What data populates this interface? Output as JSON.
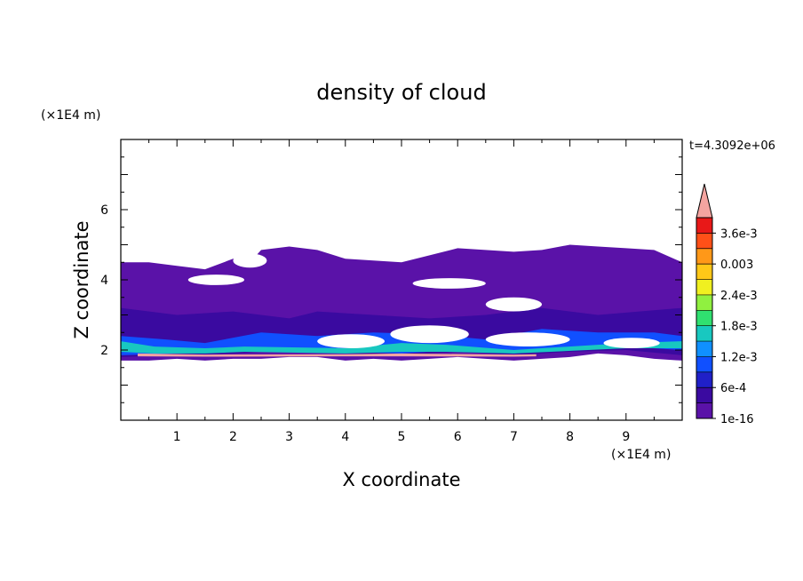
{
  "chart_data": {
    "type": "heatmap",
    "title": "density of cloud",
    "xlabel": "X coordinate",
    "ylabel": "Z coordinate",
    "x_unit_label": "(×1E4 m)",
    "y_unit_label": "(×1E4 m)",
    "time_label": "t=4.3092e+06",
    "xlim": [
      0,
      10
    ],
    "ylim": [
      0,
      8
    ],
    "x_ticks": [
      "1",
      "2",
      "3",
      "4",
      "5",
      "6",
      "7",
      "8",
      "9"
    ],
    "y_ticks": [
      "2",
      "4",
      "6"
    ],
    "grid": false,
    "colorbar": {
      "position": "right",
      "extend": "max",
      "extend_color": "#f4a4a0",
      "colors": [
        "#5a12a8",
        "#3a0aa0",
        "#2020c8",
        "#1050ff",
        "#1090ff",
        "#18c8c0",
        "#30e070",
        "#90f040",
        "#f0f020",
        "#ffc818",
        "#ff9818",
        "#ff5018",
        "#e81818"
      ],
      "tick_labels": [
        "1e-16",
        "6e-4",
        "1.2e-3",
        "1.8e-3",
        "2.4e-3",
        "0.003",
        "3.6e-3"
      ]
    },
    "field_layers": [
      {
        "level": "1e-16",
        "color": "#5a12a8",
        "top": [
          [
            0,
            4.5
          ],
          [
            0.5,
            4.5
          ],
          [
            1,
            4.4
          ],
          [
            1.5,
            4.3
          ],
          [
            2,
            4.6
          ],
          [
            2.3,
            4.5
          ],
          [
            2.5,
            4.85
          ],
          [
            3,
            4.95
          ],
          [
            3.5,
            4.85
          ],
          [
            4,
            4.6
          ],
          [
            4.5,
            4.55
          ],
          [
            5,
            4.5
          ],
          [
            5.5,
            4.7
          ],
          [
            6,
            4.9
          ],
          [
            6.5,
            4.85
          ],
          [
            7,
            4.8
          ],
          [
            7.5,
            4.85
          ],
          [
            8,
            5.0
          ],
          [
            8.5,
            4.95
          ],
          [
            9,
            4.9
          ],
          [
            9.5,
            4.85
          ],
          [
            10,
            4.5
          ]
        ],
        "bottom": [
          [
            10,
            1.7
          ],
          [
            9.5,
            1.75
          ],
          [
            9,
            1.85
          ],
          [
            8.5,
            1.9
          ],
          [
            8,
            1.8
          ],
          [
            7.5,
            1.75
          ],
          [
            7,
            1.7
          ],
          [
            6.5,
            1.75
          ],
          [
            6,
            1.8
          ],
          [
            5.5,
            1.75
          ],
          [
            5,
            1.7
          ],
          [
            4.5,
            1.75
          ],
          [
            4,
            1.7
          ],
          [
            3.5,
            1.8
          ],
          [
            3,
            1.8
          ],
          [
            2.5,
            1.75
          ],
          [
            2,
            1.75
          ],
          [
            1.5,
            1.7
          ],
          [
            1,
            1.75
          ],
          [
            0.5,
            1.7
          ],
          [
            0,
            1.7
          ]
        ]
      },
      {
        "level": "6e-4",
        "color": "#3a0aa0",
        "top": [
          [
            0,
            3.2
          ],
          [
            1,
            3.0
          ],
          [
            2,
            3.1
          ],
          [
            3,
            2.9
          ],
          [
            3.5,
            3.1
          ],
          [
            4.5,
            3.0
          ],
          [
            5.5,
            2.9
          ],
          [
            6.5,
            3.0
          ],
          [
            7.5,
            3.2
          ],
          [
            8.5,
            3.0
          ],
          [
            10,
            3.2
          ]
        ],
        "bottom": [
          [
            10,
            1.85
          ],
          [
            9,
            2.0
          ],
          [
            8,
            1.95
          ],
          [
            7,
            1.85
          ],
          [
            6,
            1.95
          ],
          [
            5,
            1.85
          ],
          [
            4,
            1.9
          ],
          [
            3,
            2.0
          ],
          [
            2,
            1.9
          ],
          [
            1,
            1.85
          ],
          [
            0,
            1.8
          ]
        ]
      },
      {
        "level": "1.2e-3",
        "color": "#1050ff",
        "top": [
          [
            0,
            2.4
          ],
          [
            0.8,
            2.3
          ],
          [
            1.5,
            2.2
          ],
          [
            2.5,
            2.5
          ],
          [
            3.5,
            2.4
          ],
          [
            4.5,
            2.5
          ],
          [
            5.5,
            2.45
          ],
          [
            6.5,
            2.3
          ],
          [
            7.5,
            2.6
          ],
          [
            8.5,
            2.5
          ],
          [
            9.5,
            2.5
          ],
          [
            10,
            2.4
          ]
        ],
        "bottom": [
          [
            10,
            2.0
          ],
          [
            9,
            2.1
          ],
          [
            8,
            2.05
          ],
          [
            7,
            1.9
          ],
          [
            6,
            2.0
          ],
          [
            5,
            1.9
          ],
          [
            4,
            1.95
          ],
          [
            3,
            2.05
          ],
          [
            2,
            1.95
          ],
          [
            1,
            1.9
          ],
          [
            0,
            1.85
          ]
        ]
      },
      {
        "level": "1.8e-3",
        "color": "#18c8c0",
        "top": [
          [
            0,
            2.25
          ],
          [
            0.6,
            2.1
          ],
          [
            1.5,
            2.05
          ],
          [
            2.2,
            2.1
          ],
          [
            4,
            2.05
          ],
          [
            5,
            2.2
          ],
          [
            5.8,
            2.15
          ],
          [
            7,
            2.0
          ],
          [
            9,
            2.2
          ],
          [
            10,
            2.25
          ]
        ],
        "bottom": [
          [
            10,
            2.05
          ],
          [
            9,
            2.05
          ],
          [
            7,
            1.9
          ],
          [
            5.8,
            1.95
          ],
          [
            5,
            1.95
          ],
          [
            4,
            1.9
          ],
          [
            2.2,
            1.95
          ],
          [
            1.5,
            1.9
          ],
          [
            0.6,
            1.9
          ],
          [
            0,
            1.95
          ]
        ]
      },
      {
        "level": "3.6e-3",
        "color": "#f4a4a0",
        "top": [
          [
            0.3,
            1.9
          ],
          [
            1.5,
            1.87
          ],
          [
            4,
            1.88
          ],
          [
            5,
            1.9
          ],
          [
            7,
            1.87
          ],
          [
            7.4,
            1.88
          ]
        ],
        "bottom": [
          [
            7.4,
            1.82
          ],
          [
            7,
            1.81
          ],
          [
            5,
            1.82
          ],
          [
            4,
            1.82
          ],
          [
            1.5,
            1.81
          ],
          [
            0.3,
            1.82
          ]
        ]
      }
    ],
    "clear_patches": [
      {
        "x": 1.2,
        "z": 4.0,
        "w": 1.0,
        "h": 0.15
      },
      {
        "x": 2.0,
        "z": 4.55,
        "w": 0.6,
        "h": 0.2
      },
      {
        "x": 5.2,
        "z": 3.9,
        "w": 1.3,
        "h": 0.15
      },
      {
        "x": 6.5,
        "z": 3.3,
        "w": 1.0,
        "h": 0.2
      },
      {
        "x": 3.5,
        "z": 2.25,
        "w": 1.2,
        "h": 0.2
      },
      {
        "x": 4.8,
        "z": 2.45,
        "w": 1.4,
        "h": 0.25
      },
      {
        "x": 6.5,
        "z": 2.3,
        "w": 1.5,
        "h": 0.2
      },
      {
        "x": 8.6,
        "z": 2.2,
        "w": 1.0,
        "h": 0.15
      }
    ]
  }
}
